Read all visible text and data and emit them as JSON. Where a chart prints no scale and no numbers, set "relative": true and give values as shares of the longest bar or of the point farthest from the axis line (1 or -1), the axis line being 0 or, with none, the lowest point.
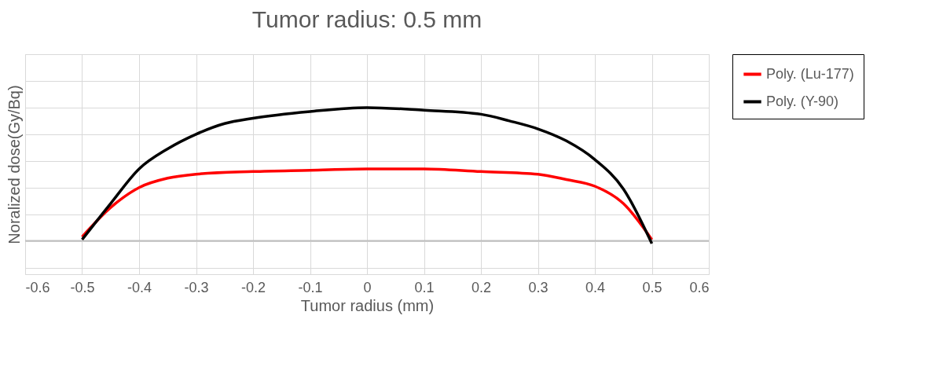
{
  "chart_data": {
    "type": "line",
    "title": "Tumor radius: 0.5 mm",
    "xlabel": "Tumor radius (mm)",
    "ylabel": "Noralized dose(Gy/Bq)",
    "relative": true,
    "xlim": [
      -0.6,
      0.6
    ],
    "xticks": [
      -0.6,
      -0.5,
      -0.4,
      -0.3,
      -0.2,
      -0.1,
      0,
      0.1,
      0.2,
      0.3,
      0.4,
      0.5,
      0.6
    ],
    "grid": true,
    "legend": "right",
    "marker": "none",
    "line_style": "solid",
    "series": [
      {
        "name": "Poly. (Lu-177)",
        "color": "#ff0000",
        "x": [
          -0.5,
          -0.45,
          -0.4,
          -0.35,
          -0.3,
          -0.2,
          -0.1,
          0,
          0.1,
          0.2,
          0.3,
          0.35,
          0.4,
          0.45,
          0.5
        ],
        "values": [
          0.03,
          0.25,
          0.4,
          0.47,
          0.5,
          0.52,
          0.53,
          0.54,
          0.54,
          0.52,
          0.5,
          0.46,
          0.41,
          0.28,
          0.01
        ]
      },
      {
        "name": "Poly. (Y-90)",
        "color": "#000000",
        "x": [
          -0.5,
          -0.45,
          -0.4,
          -0.35,
          -0.3,
          -0.25,
          -0.2,
          -0.1,
          0,
          0.1,
          0.2,
          0.25,
          0.3,
          0.35,
          0.4,
          0.45,
          0.5
        ],
        "values": [
          0.01,
          0.28,
          0.54,
          0.69,
          0.8,
          0.88,
          0.92,
          0.97,
          1,
          0.98,
          0.95,
          0.9,
          0.84,
          0.75,
          0.61,
          0.39,
          -0.02
        ]
      }
    ]
  }
}
